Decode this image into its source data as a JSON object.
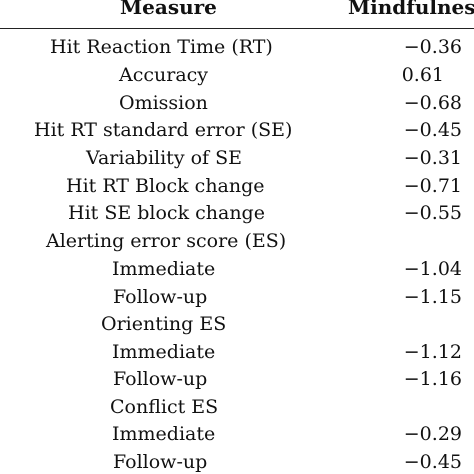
{
  "header": {
    "measure": "Measure",
    "mindfulness": "Mindfulness"
  },
  "rows": [
    {
      "measure": "Hit Reaction Time (RT)",
      "value": "−0.36"
    },
    {
      "measure": "Accuracy",
      "value": "0.61"
    },
    {
      "measure": "Omission",
      "value": "−0.68"
    },
    {
      "measure": "Hit RT standard error (SE)",
      "value": "−0.45"
    },
    {
      "measure": "Variability of SE",
      "value": "−0.31"
    },
    {
      "measure": "Hit RT Block change",
      "value": "−0.71"
    },
    {
      "measure": "Hit SE block change",
      "value": "−0.55"
    },
    {
      "measure": "Alerting error score (ES)",
      "value": ""
    },
    {
      "measure": "Immediate",
      "value": "−1.04"
    },
    {
      "measure": "Follow-up",
      "value": "−1.15"
    },
    {
      "measure": "Orienting ES",
      "value": ""
    },
    {
      "measure": "Immediate",
      "value": "−1.12"
    },
    {
      "measure": "Follow-up",
      "value": "−1.16"
    },
    {
      "measure": "Conflict ES",
      "value": ""
    },
    {
      "measure": "Immediate",
      "value": "−0.29"
    },
    {
      "measure": "Follow-up",
      "value": "−0.45"
    }
  ]
}
